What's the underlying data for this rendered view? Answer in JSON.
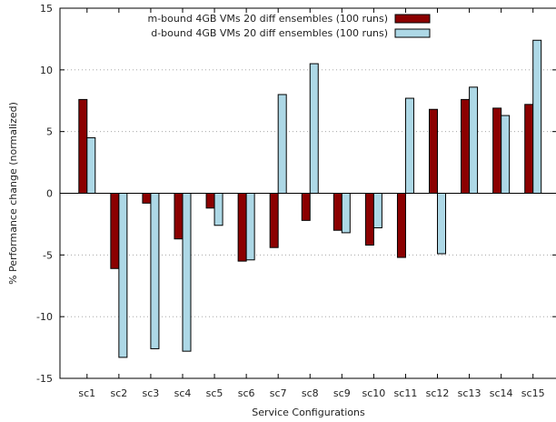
{
  "chart_data": {
    "type": "bar",
    "categories": [
      "sc1",
      "sc2",
      "sc3",
      "sc4",
      "sc5",
      "sc6",
      "sc7",
      "sc8",
      "sc9",
      "sc10",
      "sc11",
      "sc12",
      "sc13",
      "sc14",
      "sc15"
    ],
    "series": [
      {
        "name": "m-bound 4GB VMs 20 diff ensembles (100 runs)",
        "color": "#8b0000",
        "values": [
          7.6,
          -6.1,
          -0.8,
          -3.7,
          -1.2,
          -5.5,
          -4.4,
          -2.2,
          -3.0,
          -4.2,
          -5.2,
          6.8,
          7.6,
          6.9,
          7.2
        ]
      },
      {
        "name": "d-bound 4GB VMs 20 diff ensembles (100 runs)",
        "color": "#add8e6",
        "values": [
          4.5,
          -13.3,
          -12.6,
          -12.8,
          -2.6,
          -5.4,
          8.0,
          10.5,
          -3.2,
          -2.8,
          7.7,
          -4.9,
          8.6,
          6.3,
          12.4
        ]
      }
    ],
    "xlabel": "Service Configurations",
    "ylabel": "% Performance change (normalized)",
    "ylim": [
      -15,
      15
    ],
    "yticks": [
      -15,
      -10,
      -5,
      0,
      5,
      10,
      15
    ],
    "grid": true,
    "legend": "top-center"
  }
}
